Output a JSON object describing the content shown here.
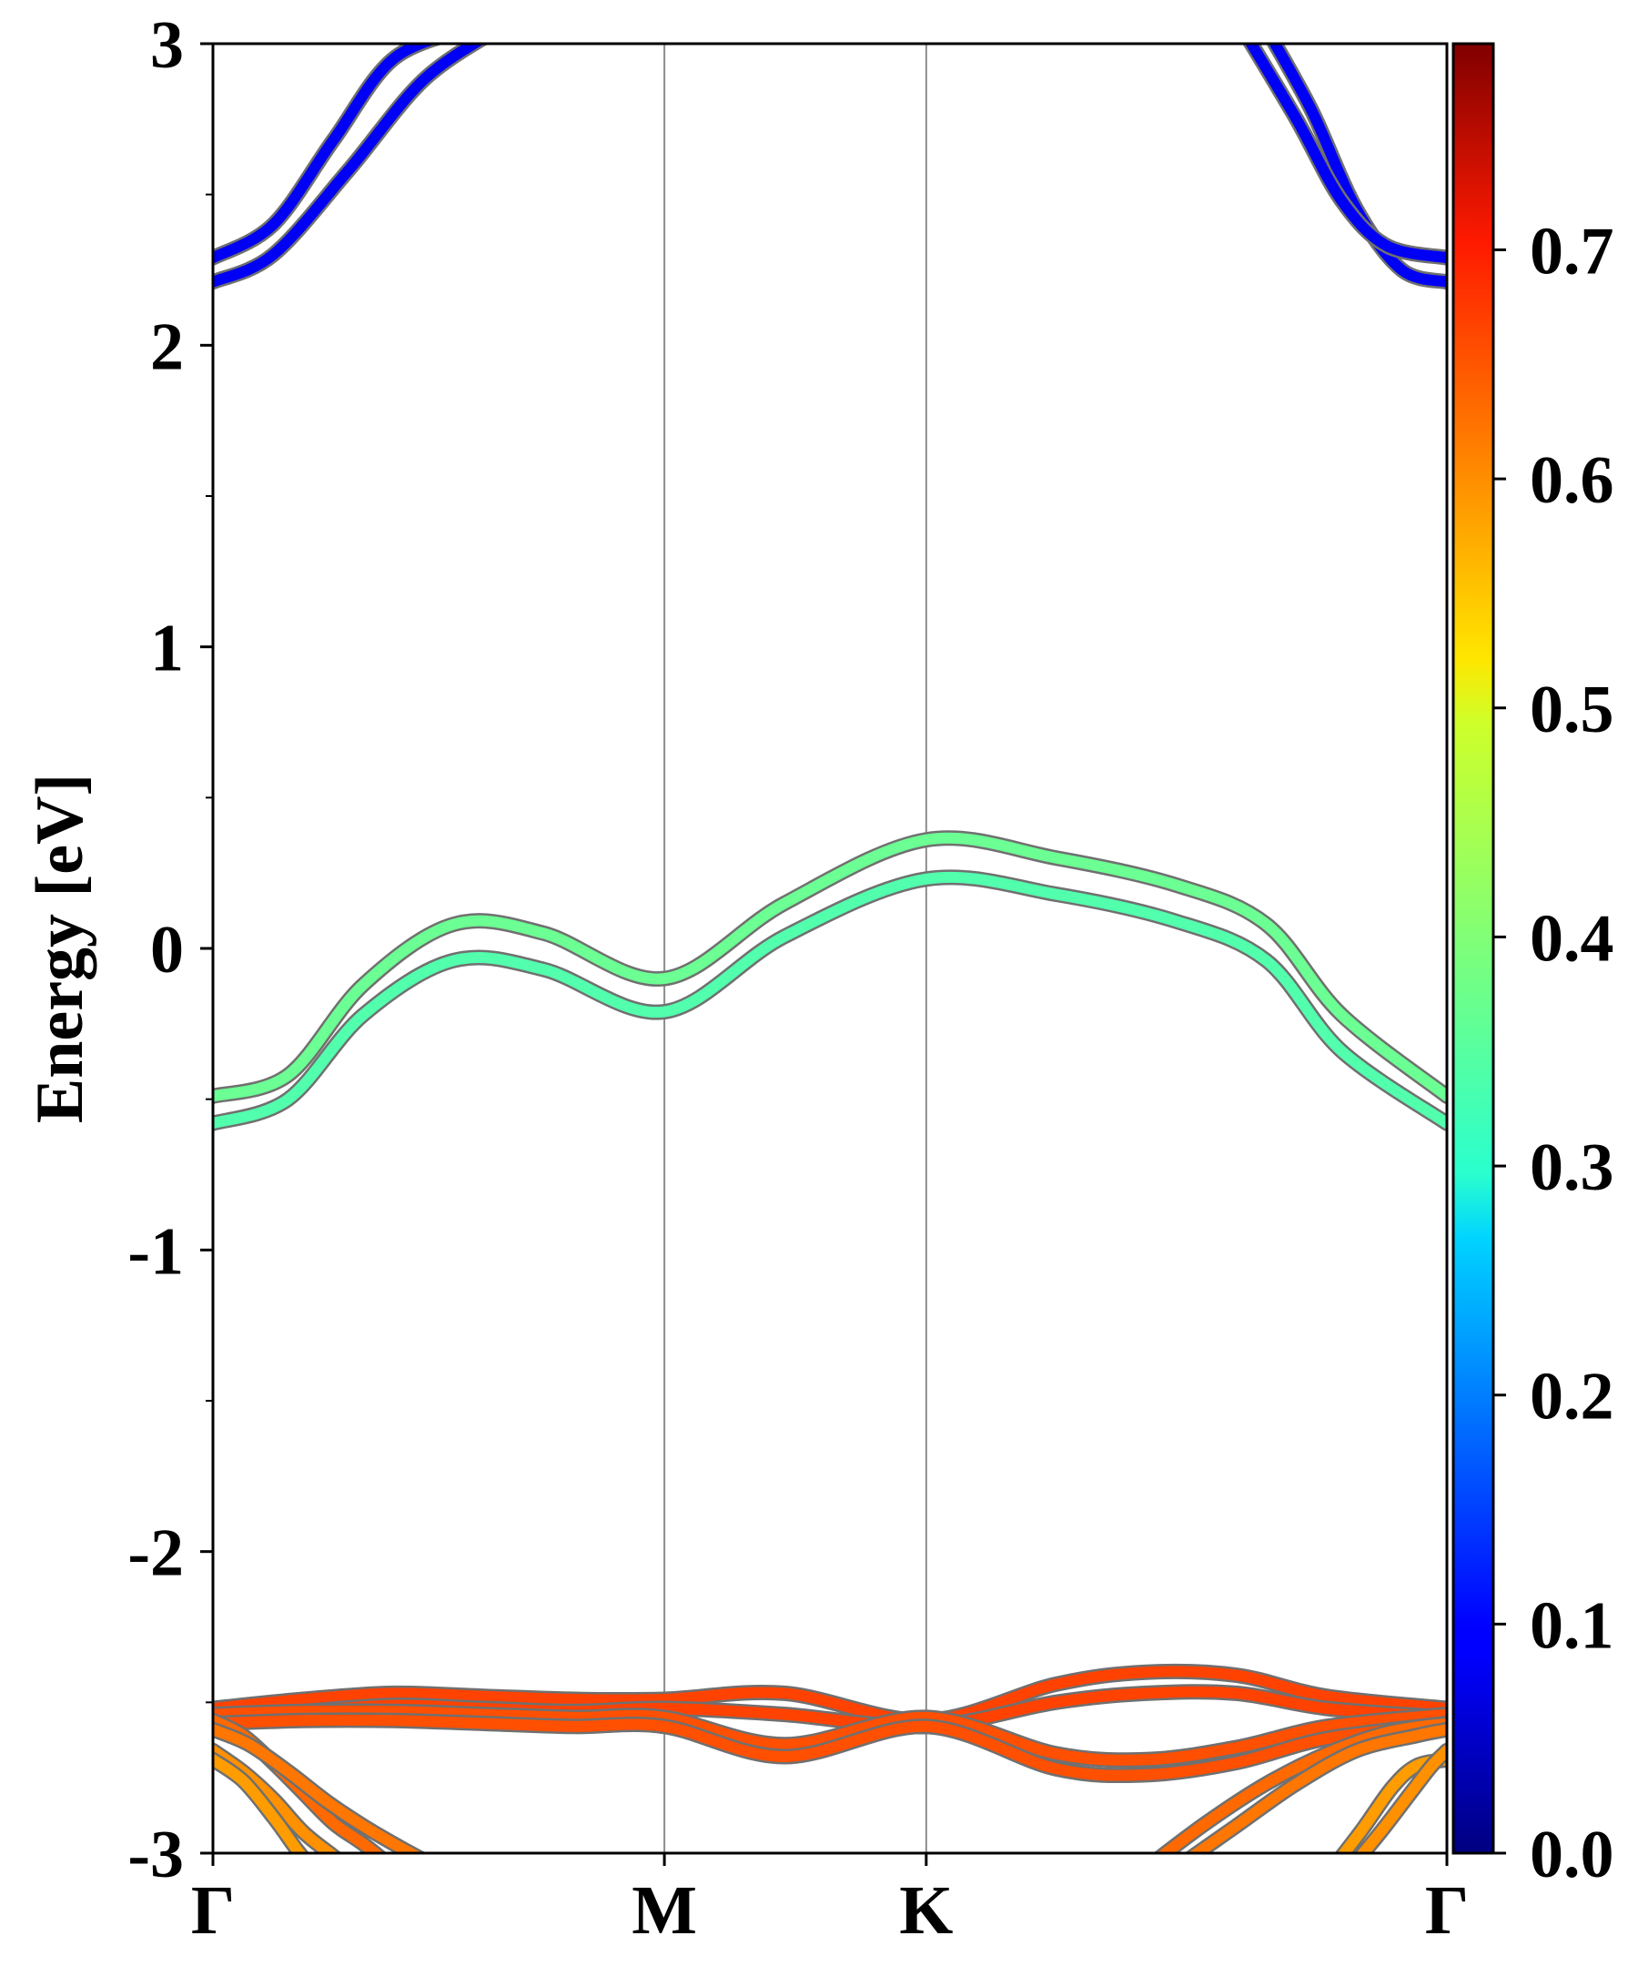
{
  "chart_data": {
    "type": "line",
    "title": "",
    "xlabel": "",
    "ylabel": "Energy [eV]",
    "ylim": [
      -3,
      3
    ],
    "y_ticks": [
      "-3",
      "-2",
      "-1",
      "0",
      "1",
      "2",
      "3"
    ],
    "k_points": [
      {
        "label": "Γ",
        "x": 0.0
      },
      {
        "label": "M",
        "x": 1.5
      },
      {
        "label": "K",
        "x": 2.37
      },
      {
        "label": "Γ",
        "x": 4.1
      }
    ],
    "grid": false,
    "colormap": "jet",
    "colorbar": {
      "range": [
        0.0,
        0.79
      ],
      "ticks": [
        "0.0",
        "0.1",
        "0.2",
        "0.3",
        "0.4",
        "0.5",
        "0.6",
        "0.7"
      ]
    },
    "series": [
      {
        "x": [
          0,
          0.2,
          0.45,
          0.7,
          0.95
        ],
        "y": [
          2.21,
          2.3,
          2.58,
          2.88,
          3.05
        ],
        "weight": 0.09
      },
      {
        "x": [
          0,
          0.2,
          0.4,
          0.6,
          0.85
        ],
        "y": [
          2.29,
          2.4,
          2.68,
          2.95,
          3.05
        ],
        "weight": 0.09
      },
      {
        "x": [
          3.5,
          3.65,
          3.8,
          3.95,
          4.1
        ],
        "y": [
          3.05,
          2.78,
          2.45,
          2.25,
          2.21
        ],
        "weight": 0.09
      },
      {
        "x": [
          3.42,
          3.6,
          3.75,
          3.9,
          4.1
        ],
        "y": [
          3.05,
          2.75,
          2.48,
          2.33,
          2.29
        ],
        "weight": 0.09
      },
      {
        "x": [
          0,
          0.25,
          0.5,
          0.8,
          1.1,
          1.5,
          1.9,
          2.37,
          2.8,
          3.2,
          3.5,
          3.75,
          4.1
        ],
        "y": [
          -0.58,
          -0.5,
          -0.22,
          -0.04,
          -0.07,
          -0.21,
          0.04,
          0.23,
          0.18,
          0.09,
          -0.04,
          -0.34,
          -0.58
        ],
        "weight": 0.36
      },
      {
        "x": [
          0,
          0.25,
          0.5,
          0.8,
          1.1,
          1.5,
          1.9,
          2.37,
          2.8,
          3.2,
          3.5,
          3.75,
          4.1
        ],
        "y": [
          -0.49,
          -0.42,
          -0.12,
          0.08,
          0.05,
          -0.1,
          0.15,
          0.36,
          0.3,
          0.21,
          0.08,
          -0.22,
          -0.49
        ],
        "weight": 0.38
      },
      {
        "x": [
          0,
          0.3,
          0.6,
          0.9,
          1.2,
          1.5,
          1.9,
          2.37,
          2.8,
          3.1,
          3.4,
          3.7,
          4.1
        ],
        "y": [
          -2.52,
          -2.49,
          -2.47,
          -2.48,
          -2.49,
          -2.49,
          -2.47,
          -2.56,
          -2.44,
          -2.4,
          -2.41,
          -2.48,
          -2.52
        ],
        "weight": 0.64
      },
      {
        "x": [
          0,
          0.3,
          0.6,
          0.9,
          1.2,
          1.5,
          1.9,
          2.37,
          2.8,
          3.1,
          3.4,
          3.7,
          4.1
        ],
        "y": [
          -2.55,
          -2.53,
          -2.51,
          -2.52,
          -2.53,
          -2.52,
          -2.54,
          -2.58,
          -2.5,
          -2.47,
          -2.47,
          -2.52,
          -2.55
        ],
        "weight": 0.64
      },
      {
        "x": [
          0,
          0.3,
          0.6,
          0.9,
          1.2,
          1.5,
          1.9,
          2.37,
          2.8,
          3.1,
          3.4,
          3.7,
          4.1
        ],
        "y": [
          -2.54,
          -2.53,
          -2.53,
          -2.54,
          -2.55,
          -2.55,
          -2.64,
          -2.55,
          -2.67,
          -2.69,
          -2.65,
          -2.58,
          -2.54
        ],
        "weight": 0.63
      },
      {
        "x": [
          0,
          0.3,
          0.6,
          0.9,
          1.2,
          1.5,
          1.9,
          2.37,
          2.8,
          3.1,
          3.4,
          3.7,
          4.1
        ],
        "y": [
          -2.57,
          -2.56,
          -2.56,
          -2.57,
          -2.58,
          -2.58,
          -2.68,
          -2.58,
          -2.72,
          -2.74,
          -2.7,
          -2.62,
          -2.57
        ],
        "weight": 0.63
      },
      {
        "x": [
          0,
          0.1,
          0.2,
          0.3,
          0.4,
          0.5,
          0.6
        ],
        "y": [
          -2.56,
          -2.61,
          -2.7,
          -2.8,
          -2.9,
          -2.97,
          -3.05
        ],
        "weight": 0.61
      },
      {
        "x": [
          0,
          0.12,
          0.25,
          0.38,
          0.5,
          0.62,
          0.75
        ],
        "y": [
          -2.59,
          -2.64,
          -2.73,
          -2.83,
          -2.91,
          -2.98,
          -3.05
        ],
        "weight": 0.6
      },
      {
        "x": [
          0,
          0.1,
          0.2,
          0.3,
          0.4,
          0.45
        ],
        "y": [
          -2.66,
          -2.73,
          -2.82,
          -2.93,
          -3.01,
          -3.05
        ],
        "weight": 0.58
      },
      {
        "x": [
          0,
          0.1,
          0.2,
          0.28,
          0.33
        ],
        "y": [
          -2.69,
          -2.76,
          -2.88,
          -2.99,
          -3.05
        ],
        "weight": 0.57
      },
      {
        "x": [
          3.1,
          3.3,
          3.5,
          3.7,
          3.9,
          4.1
        ],
        "y": [
          -3.05,
          -2.9,
          -2.77,
          -2.67,
          -2.6,
          -2.57
        ],
        "weight": 0.61
      },
      {
        "x": [
          3.2,
          3.4,
          3.6,
          3.8,
          4.0,
          4.1
        ],
        "y": [
          -3.05,
          -2.91,
          -2.77,
          -2.66,
          -2.61,
          -2.59
        ],
        "weight": 0.6
      },
      {
        "x": [
          3.72,
          3.82,
          3.92,
          4.0,
          4.1
        ],
        "y": [
          -3.05,
          -2.92,
          -2.78,
          -2.71,
          -2.69
        ],
        "weight": 0.57
      },
      {
        "x": [
          3.78,
          3.88,
          3.98,
          4.05,
          4.1
        ],
        "y": [
          -3.05,
          -2.93,
          -2.8,
          -2.71,
          -2.66
        ],
        "weight": 0.58
      }
    ]
  }
}
